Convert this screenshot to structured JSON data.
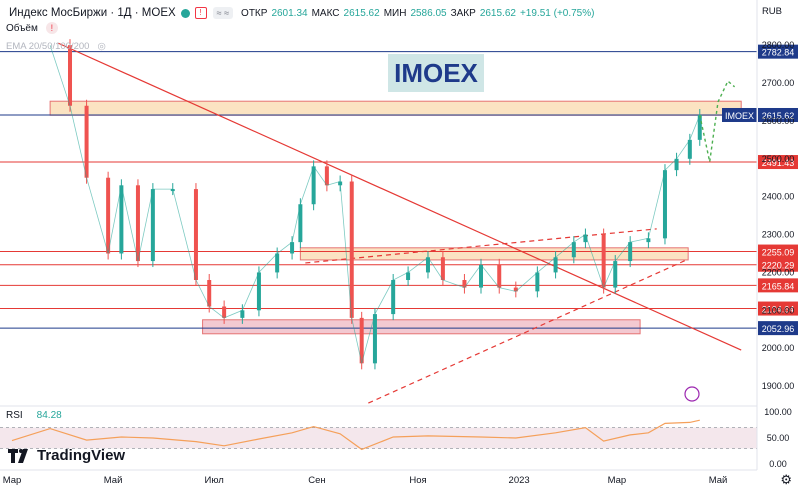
{
  "header": {
    "symbol": "Индекс МосБиржи · 1Д · MOEX",
    "ohlc": [
      {
        "k": "ОТКР",
        "v": "2601.34"
      },
      {
        "k": "МАКС",
        "v": "2615.62"
      },
      {
        "k": "МИН",
        "v": "2586.05"
      },
      {
        "k": "ЗАКР",
        "v": "2615.62"
      },
      {
        "k": "",
        "v": "+19.51 (+0.75%)"
      }
    ],
    "bell_icon": "bell-icon",
    "toggle_label": "≈ ≈",
    "volume_label": "Объём",
    "ema_label": "EMA 20/50/100/200",
    "currency": "RUB"
  },
  "watermark": "IMOEX",
  "brand": "TradingView",
  "rsi": {
    "label": "RSI",
    "value": "84.28"
  },
  "colors": {
    "up": "#26a69a",
    "down": "#ef5350",
    "level_red": "#e53935",
    "level_blue": "#1e3a8a",
    "zone_fill": "#fbe3c2",
    "zone_pink": "#f3c9d1",
    "watermark_bg": "#cfe6e6",
    "rsi_line": "#f5a05a",
    "rsi_band": "#f4e7ec",
    "forecast": "#4caf50"
  },
  "chart_data": [
    {
      "type": "line",
      "title": "Индекс МосБиржи · 1Д · MOEX",
      "ylim": [
        1850,
        2840
      ],
      "y_ticks": [
        "1900.00",
        "2000.00",
        "2100.00",
        "2200.00",
        "2300.00",
        "2400.00",
        "2500.00",
        "2600.00",
        "2700.00",
        "2800.00"
      ],
      "x_labels": [
        "Мар",
        "Май",
        "Июл",
        "Сен",
        "Ноя",
        "2023",
        "Мар",
        "Май"
      ],
      "x_dates": [
        "2022-03-01",
        "2022-05-01",
        "2022-07-01",
        "2022-09-01",
        "2022-11-01",
        "2023-01-01",
        "2023-03-01",
        "2023-05-01"
      ],
      "price": {
        "dates": [
          "2022-03-24",
          "2022-04-05",
          "2022-04-15",
          "2022-04-28",
          "2022-05-06",
          "2022-05-16",
          "2022-05-25",
          "2022-06-06",
          "2022-06-20",
          "2022-06-28",
          "2022-07-07",
          "2022-07-18",
          "2022-07-28",
          "2022-08-08",
          "2022-08-17",
          "2022-08-22",
          "2022-08-30",
          "2022-09-07",
          "2022-09-15",
          "2022-09-22",
          "2022-09-28",
          "2022-10-06",
          "2022-10-17",
          "2022-10-26",
          "2022-11-07",
          "2022-11-16",
          "2022-11-29",
          "2022-12-09",
          "2022-12-20",
          "2022-12-30",
          "2023-01-12",
          "2023-01-23",
          "2023-02-03",
          "2023-02-10",
          "2023-02-21",
          "2023-02-28",
          "2023-03-09",
          "2023-03-20",
          "2023-03-30",
          "2023-04-06",
          "2023-04-14",
          "2023-04-20"
        ],
        "values": [
          2800,
          2640,
          2450,
          2250,
          2430,
          2230,
          2420,
          2420,
          2180,
          2110,
          2080,
          2100,
          2200,
          2250,
          2280,
          2380,
          2480,
          2430,
          2440,
          2080,
          1960,
          2090,
          2180,
          2200,
          2240,
          2180,
          2160,
          2220,
          2160,
          2150,
          2200,
          2240,
          2280,
          2300,
          2160,
          2230,
          2280,
          2290,
          2470,
          2500,
          2550,
          2615.62
        ]
      },
      "levels": [
        {
          "value": "2782.84",
          "color": "#1e3a8a"
        },
        {
          "value": "2615.62",
          "color": "#1e3a8a",
          "name": "IMOEX"
        },
        {
          "value": "2491.43",
          "color": "#e53935"
        },
        {
          "value": "2255.09",
          "color": "#e53935"
        },
        {
          "value": "2220.29",
          "color": "#e53935"
        },
        {
          "value": "2165.84",
          "color": "#e53935"
        },
        {
          "value": "2104.64",
          "color": "#e53935"
        },
        {
          "value": "2052.96",
          "color": "#1e3a8a"
        }
      ],
      "zones": [
        {
          "from": 2615,
          "to": 2652,
          "color": "#fbe3c2",
          "start": "2022-03-24",
          "end": "2023-05-15"
        },
        {
          "from": 2233,
          "to": 2265,
          "color": "#fbe3c2",
          "start": "2022-08-22",
          "end": "2023-04-13"
        },
        {
          "from": 2038,
          "to": 2075,
          "color": "#f3c9d1",
          "start": "2022-06-24",
          "end": "2023-03-15"
        }
      ],
      "trendlines": [
        {
          "start": [
            "2022-03-29",
            2805
          ],
          "end": [
            "2023-05-15",
            1995
          ],
          "style": "solid"
        },
        {
          "start": [
            "2022-10-02",
            1855
          ],
          "end": [
            "2023-04-13",
            2235
          ],
          "style": "dashed"
        },
        {
          "start": [
            "2022-08-25",
            2225
          ],
          "end": [
            "2023-03-25",
            2315
          ],
          "style": "dashed"
        }
      ],
      "forecast": {
        "dates": [
          "2023-04-20",
          "2023-04-26",
          "2023-05-01",
          "2023-05-07",
          "2023-05-11"
        ],
        "values": [
          2615,
          2492,
          2650,
          2705,
          2690
        ]
      }
    },
    {
      "type": "line",
      "title": "RSI",
      "ylim": [
        0,
        100
      ],
      "y_ticks": [
        "0.00",
        "50.00",
        "100.00"
      ],
      "bands": [
        30,
        70
      ],
      "dates": [
        "2022-03-01",
        "2022-03-24",
        "2022-04-15",
        "2022-05-06",
        "2022-05-25",
        "2022-06-20",
        "2022-07-07",
        "2022-07-28",
        "2022-08-17",
        "2022-08-30",
        "2022-09-15",
        "2022-09-28",
        "2022-10-17",
        "2022-11-07",
        "2022-12-09",
        "2022-12-30",
        "2023-01-23",
        "2023-02-10",
        "2023-02-21",
        "2023-03-09",
        "2023-03-20",
        "2023-03-30",
        "2023-04-14",
        "2023-04-20"
      ],
      "values": [
        45,
        68,
        46,
        52,
        50,
        43,
        35,
        48,
        60,
        72,
        58,
        28,
        52,
        54,
        52,
        50,
        60,
        70,
        44,
        56,
        60,
        78,
        80,
        84.28
      ]
    }
  ]
}
